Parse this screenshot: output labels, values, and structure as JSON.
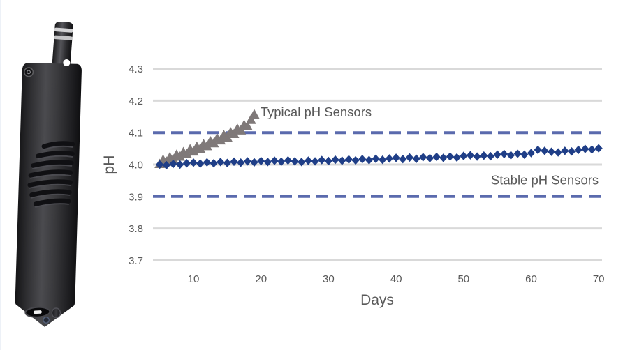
{
  "probe": {
    "label": "pH sensor probe"
  },
  "chart_data": {
    "type": "scatter",
    "title": "",
    "xlabel": "Days",
    "ylabel": "pH",
    "xlim": [
      4,
      70.5
    ],
    "ylim": [
      3.65,
      4.35
    ],
    "x_ticks": [
      10,
      20,
      30,
      40,
      50,
      60,
      70
    ],
    "y_ticks": [
      "4.3",
      "4.2",
      "4.1",
      "4.0",
      "3.9",
      "3.8",
      "3.7"
    ],
    "gridlines_y": [
      4.3,
      4.2,
      4.0,
      3.8,
      3.7
    ],
    "grid": true,
    "legend_position": "inline-annotations",
    "colors": {
      "gridline": "#d9d9d9",
      "text": "#595959",
      "limit_line": "#5a6aad",
      "typical_series": "#7f7979",
      "stable_series": "#1f3e87"
    },
    "limit_lines": {
      "values": [
        4.1,
        3.9
      ],
      "style": "dashed",
      "color": "#5a6aad"
    },
    "series": [
      {
        "id": "typical",
        "name": "Typical pH Sensors",
        "marker": "triangle",
        "color": "#7f7979",
        "points": [
          [
            5,
            4.0
          ],
          [
            5.5,
            4.013
          ],
          [
            6,
            4.007
          ],
          [
            6.5,
            4.021
          ],
          [
            7,
            4.015
          ],
          [
            7.5,
            4.029
          ],
          [
            8,
            4.023
          ],
          [
            8.5,
            4.037
          ],
          [
            9,
            4.031
          ],
          [
            9.5,
            4.046
          ],
          [
            10,
            4.039
          ],
          [
            10.5,
            4.054
          ],
          [
            11,
            4.048
          ],
          [
            11.5,
            4.062
          ],
          [
            12,
            4.056
          ],
          [
            12.5,
            4.071
          ],
          [
            13,
            4.065
          ],
          [
            13.5,
            4.08
          ],
          [
            14,
            4.074
          ],
          [
            14.5,
            4.09
          ],
          [
            15,
            4.083
          ],
          [
            15.5,
            4.099
          ],
          [
            16,
            4.094
          ],
          [
            16.5,
            4.11
          ],
          [
            17,
            4.105
          ],
          [
            17.5,
            4.122
          ],
          [
            18,
            4.118
          ],
          [
            18.5,
            4.138
          ],
          [
            19,
            4.155
          ]
        ]
      },
      {
        "id": "stable",
        "name": "Stable pH Sensors",
        "marker": "diamond",
        "color": "#1f3e87",
        "points": [
          [
            5,
            4.0
          ],
          [
            6,
            3.998
          ],
          [
            7,
            4.002
          ],
          [
            8,
            4.0
          ],
          [
            9,
            4.004
          ],
          [
            10,
            4.006
          ],
          [
            11,
            4.003
          ],
          [
            12,
            4.007
          ],
          [
            13,
            4.004
          ],
          [
            14,
            4.008
          ],
          [
            15,
            4.005
          ],
          [
            16,
            4.009
          ],
          [
            17,
            4.006
          ],
          [
            18,
            4.01
          ],
          [
            19,
            4.007
          ],
          [
            20,
            4.011
          ],
          [
            21,
            4.008
          ],
          [
            22,
            4.012
          ],
          [
            23,
            4.009
          ],
          [
            24,
            4.013
          ],
          [
            25,
            4.01
          ],
          [
            26,
            4.008
          ],
          [
            27,
            4.012
          ],
          [
            28,
            4.01
          ],
          [
            29,
            4.014
          ],
          [
            30,
            4.011
          ],
          [
            31,
            4.015
          ],
          [
            32,
            4.012
          ],
          [
            33,
            4.016
          ],
          [
            34,
            4.013
          ],
          [
            35,
            4.017
          ],
          [
            36,
            4.014
          ],
          [
            37,
            4.018
          ],
          [
            38,
            4.015
          ],
          [
            39,
            4.019
          ],
          [
            40,
            4.021
          ],
          [
            41,
            4.017
          ],
          [
            42,
            4.022
          ],
          [
            43,
            4.018
          ],
          [
            44,
            4.023
          ],
          [
            45,
            4.02
          ],
          [
            46,
            4.024
          ],
          [
            47,
            4.021
          ],
          [
            48,
            4.025
          ],
          [
            49,
            4.022
          ],
          [
            50,
            4.027
          ],
          [
            51,
            4.029
          ],
          [
            52,
            4.025
          ],
          [
            53,
            4.028
          ],
          [
            54,
            4.026
          ],
          [
            55,
            4.031
          ],
          [
            56,
            4.033
          ],
          [
            57,
            4.029
          ],
          [
            58,
            4.034
          ],
          [
            59,
            4.031
          ],
          [
            60,
            4.036
          ],
          [
            61,
            4.046
          ],
          [
            62,
            4.043
          ],
          [
            63,
            4.04
          ],
          [
            64,
            4.038
          ],
          [
            65,
            4.043
          ],
          [
            66,
            4.041
          ],
          [
            67,
            4.046
          ],
          [
            68,
            4.049
          ],
          [
            69,
            4.047
          ],
          [
            70,
            4.051
          ]
        ]
      }
    ],
    "annotations": [
      {
        "text": "Typical pH Sensors",
        "x": 19.9,
        "y": 4.165,
        "align": "left"
      },
      {
        "text": "Stable pH Sensors",
        "x": 70.0,
        "y": 3.952,
        "align": "right"
      }
    ]
  }
}
